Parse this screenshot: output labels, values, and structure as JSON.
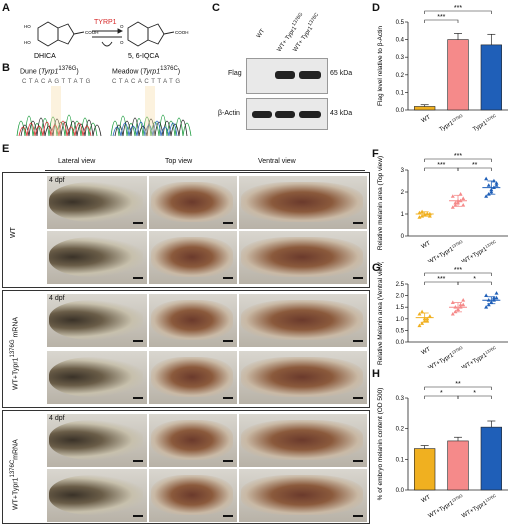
{
  "panels": {
    "A": "A",
    "B": "B",
    "C": "C",
    "D": "D",
    "E": "E",
    "F": "F",
    "G": "G",
    "H": "H"
  },
  "A": {
    "enzyme": "TYRP1",
    "left": "DHICA",
    "right": "5, 6-IQCA",
    "cooh1": "COOH",
    "cooh2": "COOH",
    "ho1": "HO",
    "ho2": "HO",
    "o1": "O",
    "o2": "O"
  },
  "B": {
    "left_title": "Dune (",
    "left_gene": "Tyrp1",
    "left_sup": "1376G",
    "right_title": "Meadow (",
    "right_gene": "Tyrp1",
    "right_sup": "1376C",
    "close": ")",
    "seq_left": "CTACAGTTATG",
    "seq_right": "CTACACTTATG"
  },
  "C": {
    "cols": [
      "WT",
      "WT+ Typr1",
      "WT+ Typr1"
    ],
    "col_sups": [
      "",
      "1376G",
      "1376C"
    ],
    "row1": "Flag",
    "row2": "β-Actin",
    "kda1": "65 kDa",
    "kda2": "43 kDa"
  },
  "E": {
    "views": [
      "Lateral view",
      "Top view",
      "Ventral view"
    ],
    "dpf": "4 dpf",
    "rows": [
      "WT",
      "WT+Typr1",
      "WT+Typr1"
    ],
    "row_sups": [
      "",
      "1376G",
      "1376C"
    ],
    "row_suffix": [
      "",
      " mRNA",
      "mRNA"
    ]
  },
  "chart_data": [
    {
      "panel": "D",
      "type": "bar",
      "categories": [
        "WT",
        "Typr1",
        "Typr1"
      ],
      "cat_sups": [
        "",
        "1376G",
        "1376C"
      ],
      "values": [
        0.02,
        0.4,
        0.37
      ],
      "errors": [
        0.01,
        0.035,
        0.06
      ],
      "colors": [
        "#f0b020",
        "#f58a8a",
        "#1f5fb8"
      ],
      "ylabel": "Flag level relative to β-Actin",
      "ylim": [
        0,
        0.5
      ],
      "yticks": [
        0.0,
        0.1,
        0.2,
        0.3,
        0.4,
        0.5
      ],
      "sig": [
        "***",
        "***"
      ]
    },
    {
      "panel": "F",
      "type": "scatter",
      "categories": [
        "WT",
        "WT+Typr1",
        "WT+Typr1"
      ],
      "cat_sups": [
        "",
        "1376G",
        "1376C"
      ],
      "means": [
        1.0,
        1.6,
        2.2
      ],
      "sd": [
        0.1,
        0.25,
        0.3
      ],
      "colors": [
        "#f0b020",
        "#f58a8a",
        "#1f5fb8"
      ],
      "points": [
        [
          0.85,
          0.9,
          0.95,
          1.0,
          1.0,
          1.05,
          1.1,
          0.95,
          1.0,
          0.9
        ],
        [
          1.3,
          1.4,
          1.5,
          1.6,
          1.7,
          1.8,
          1.5,
          1.6,
          1.9,
          1.4
        ],
        [
          1.8,
          1.9,
          2.0,
          2.2,
          2.4,
          2.6,
          2.3,
          2.1,
          2.5,
          2.3
        ]
      ],
      "ylabel": "Relative melanin area (Top view)",
      "ylim": [
        0,
        3
      ],
      "yticks": [
        0,
        1,
        2,
        3
      ],
      "sig": [
        "***",
        "**",
        "***"
      ]
    },
    {
      "panel": "G",
      "type": "scatter",
      "categories": [
        "WT",
        "WT+Typr1",
        "WT+Typr1"
      ],
      "cat_sups": [
        "",
        "1376G",
        "1376C"
      ],
      "means": [
        1.05,
        1.5,
        1.8
      ],
      "sd": [
        0.2,
        0.2,
        0.15
      ],
      "colors": [
        "#f0b020",
        "#f58a8a",
        "#1f5fb8"
      ],
      "points": [
        [
          0.7,
          0.8,
          0.9,
          1.0,
          1.1,
          1.2,
          1.3,
          1.0,
          0.9,
          1.1
        ],
        [
          1.2,
          1.3,
          1.4,
          1.5,
          1.6,
          1.7,
          1.5,
          1.4,
          1.6,
          1.8
        ],
        [
          1.5,
          1.6,
          1.7,
          1.8,
          1.9,
          2.0,
          1.8,
          1.7,
          1.9,
          2.1
        ]
      ],
      "ylabel": "Relative Melanin area (Ventral view)",
      "ylim": [
        0,
        2.5
      ],
      "yticks": [
        0.0,
        0.5,
        1.0,
        1.5,
        2.0,
        2.5
      ],
      "sig": [
        "***",
        "*",
        "***"
      ]
    },
    {
      "panel": "H",
      "type": "bar",
      "categories": [
        "WT",
        "WT+Typr1",
        "WT+Typr1"
      ],
      "cat_sups": [
        "",
        "1376G",
        "1376C"
      ],
      "values": [
        0.135,
        0.16,
        0.205
      ],
      "errors": [
        0.01,
        0.012,
        0.02
      ],
      "colors": [
        "#f0b020",
        "#f58a8a",
        "#1f5fb8"
      ],
      "ylabel": "% of embryo melanin content (OD 500)",
      "ylim": [
        0,
        0.3
      ],
      "yticks": [
        0.0,
        0.1,
        0.2,
        0.3
      ],
      "sig": [
        "*",
        "*",
        "**"
      ]
    }
  ]
}
